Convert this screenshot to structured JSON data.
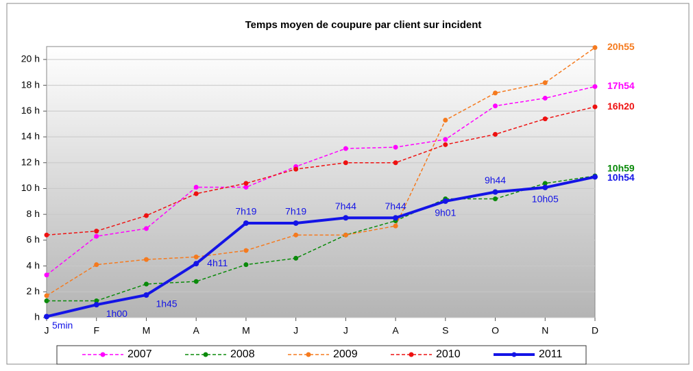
{
  "chart_data": {
    "type": "line",
    "title": "Temps moyen de coupure par client sur incident",
    "categories": [
      "J",
      "F",
      "M",
      "A",
      "M",
      "J",
      "J",
      "A",
      "S",
      "O",
      "N",
      "D"
    ],
    "ylim": [
      0,
      21
    ],
    "yticks": [
      {
        "value": 0,
        "label": "h"
      },
      {
        "value": 2,
        "label": "2 h"
      },
      {
        "value": 4,
        "label": "4 h"
      },
      {
        "value": 6,
        "label": "6 h"
      },
      {
        "value": 8,
        "label": "8 h"
      },
      {
        "value": 10,
        "label": "10 h"
      },
      {
        "value": 12,
        "label": "12 h"
      },
      {
        "value": 14,
        "label": "14 h"
      },
      {
        "value": 16,
        "label": "16 h"
      },
      {
        "value": 18,
        "label": "18 h"
      },
      {
        "value": 20,
        "label": "20 h"
      }
    ],
    "grid": true,
    "legend": "bottom",
    "series": [
      {
        "name": "2007",
        "color": "#ff00ff",
        "dashed": true,
        "values": [
          3.3,
          6.3,
          6.9,
          10.1,
          10.1,
          11.7,
          13.1,
          13.2,
          13.8,
          16.4,
          17.0,
          17.9
        ],
        "value_labels": [
          null,
          null,
          null,
          null,
          null,
          null,
          null,
          null,
          null,
          null,
          null,
          "17h54"
        ]
      },
      {
        "name": "2008",
        "color": "#0a8a0a",
        "dashed": true,
        "values": [
          1.3,
          1.3,
          2.6,
          2.8,
          4.1,
          4.6,
          6.4,
          7.5,
          9.2,
          9.2,
          10.4,
          10.98
        ],
        "value_labels": [
          null,
          null,
          null,
          null,
          null,
          null,
          null,
          null,
          null,
          null,
          null,
          "10h59"
        ]
      },
      {
        "name": "2009",
        "color": "#f57a1e",
        "dashed": true,
        "values": [
          1.7,
          4.1,
          4.5,
          4.7,
          5.2,
          6.4,
          6.4,
          7.1,
          15.3,
          17.4,
          18.2,
          20.92
        ],
        "value_labels": [
          null,
          null,
          null,
          null,
          null,
          null,
          null,
          null,
          null,
          null,
          null,
          "20h55"
        ]
      },
      {
        "name": "2010",
        "color": "#ee1111",
        "dashed": true,
        "values": [
          6.4,
          6.7,
          7.9,
          9.6,
          10.4,
          11.5,
          12.0,
          12.0,
          13.4,
          14.2,
          15.4,
          16.33
        ],
        "value_labels": [
          null,
          null,
          null,
          null,
          null,
          null,
          null,
          null,
          null,
          null,
          null,
          "16h20"
        ]
      },
      {
        "name": "2011",
        "color": "#1414e6",
        "dashed": false,
        "values": [
          0.08,
          1.0,
          1.75,
          4.18,
          7.32,
          7.32,
          7.73,
          7.73,
          9.02,
          9.73,
          10.08,
          10.9
        ],
        "value_labels": [
          "5min",
          "1h00",
          "1h45",
          "4h11",
          "7h19",
          "7h19",
          "7h44",
          "7h44",
          "9h01",
          "9h44",
          "10h05",
          "10h54"
        ]
      }
    ]
  }
}
